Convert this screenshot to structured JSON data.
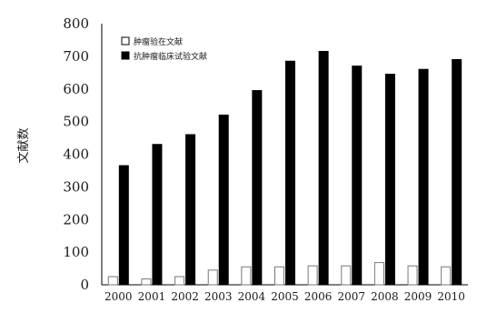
{
  "chart_data": {
    "type": "bar",
    "categories": [
      "2000",
      "2001",
      "2002",
      "2003",
      "2004",
      "2005",
      "2006",
      "2007",
      "2008",
      "2009",
      "2010"
    ],
    "series": [
      {
        "name": "肿瘤验在文献",
        "color": "#ffffff",
        "values": [
          25,
          18,
          25,
          45,
          55,
          55,
          58,
          58,
          68,
          58,
          55
        ]
      },
      {
        "name": "抗肿瘤临床试验文献",
        "color": "#000000",
        "values": [
          365,
          430,
          460,
          520,
          595,
          685,
          715,
          670,
          645,
          660,
          690
        ]
      }
    ],
    "yticks": [
      "0",
      "100",
      "200",
      "300",
      "400",
      "500",
      "600",
      "700",
      "800"
    ],
    "ylim": [
      0,
      800
    ],
    "ylabel": "文献数",
    "xlabel": "",
    "title": "",
    "legend_position": "top-left",
    "grid": false
  }
}
